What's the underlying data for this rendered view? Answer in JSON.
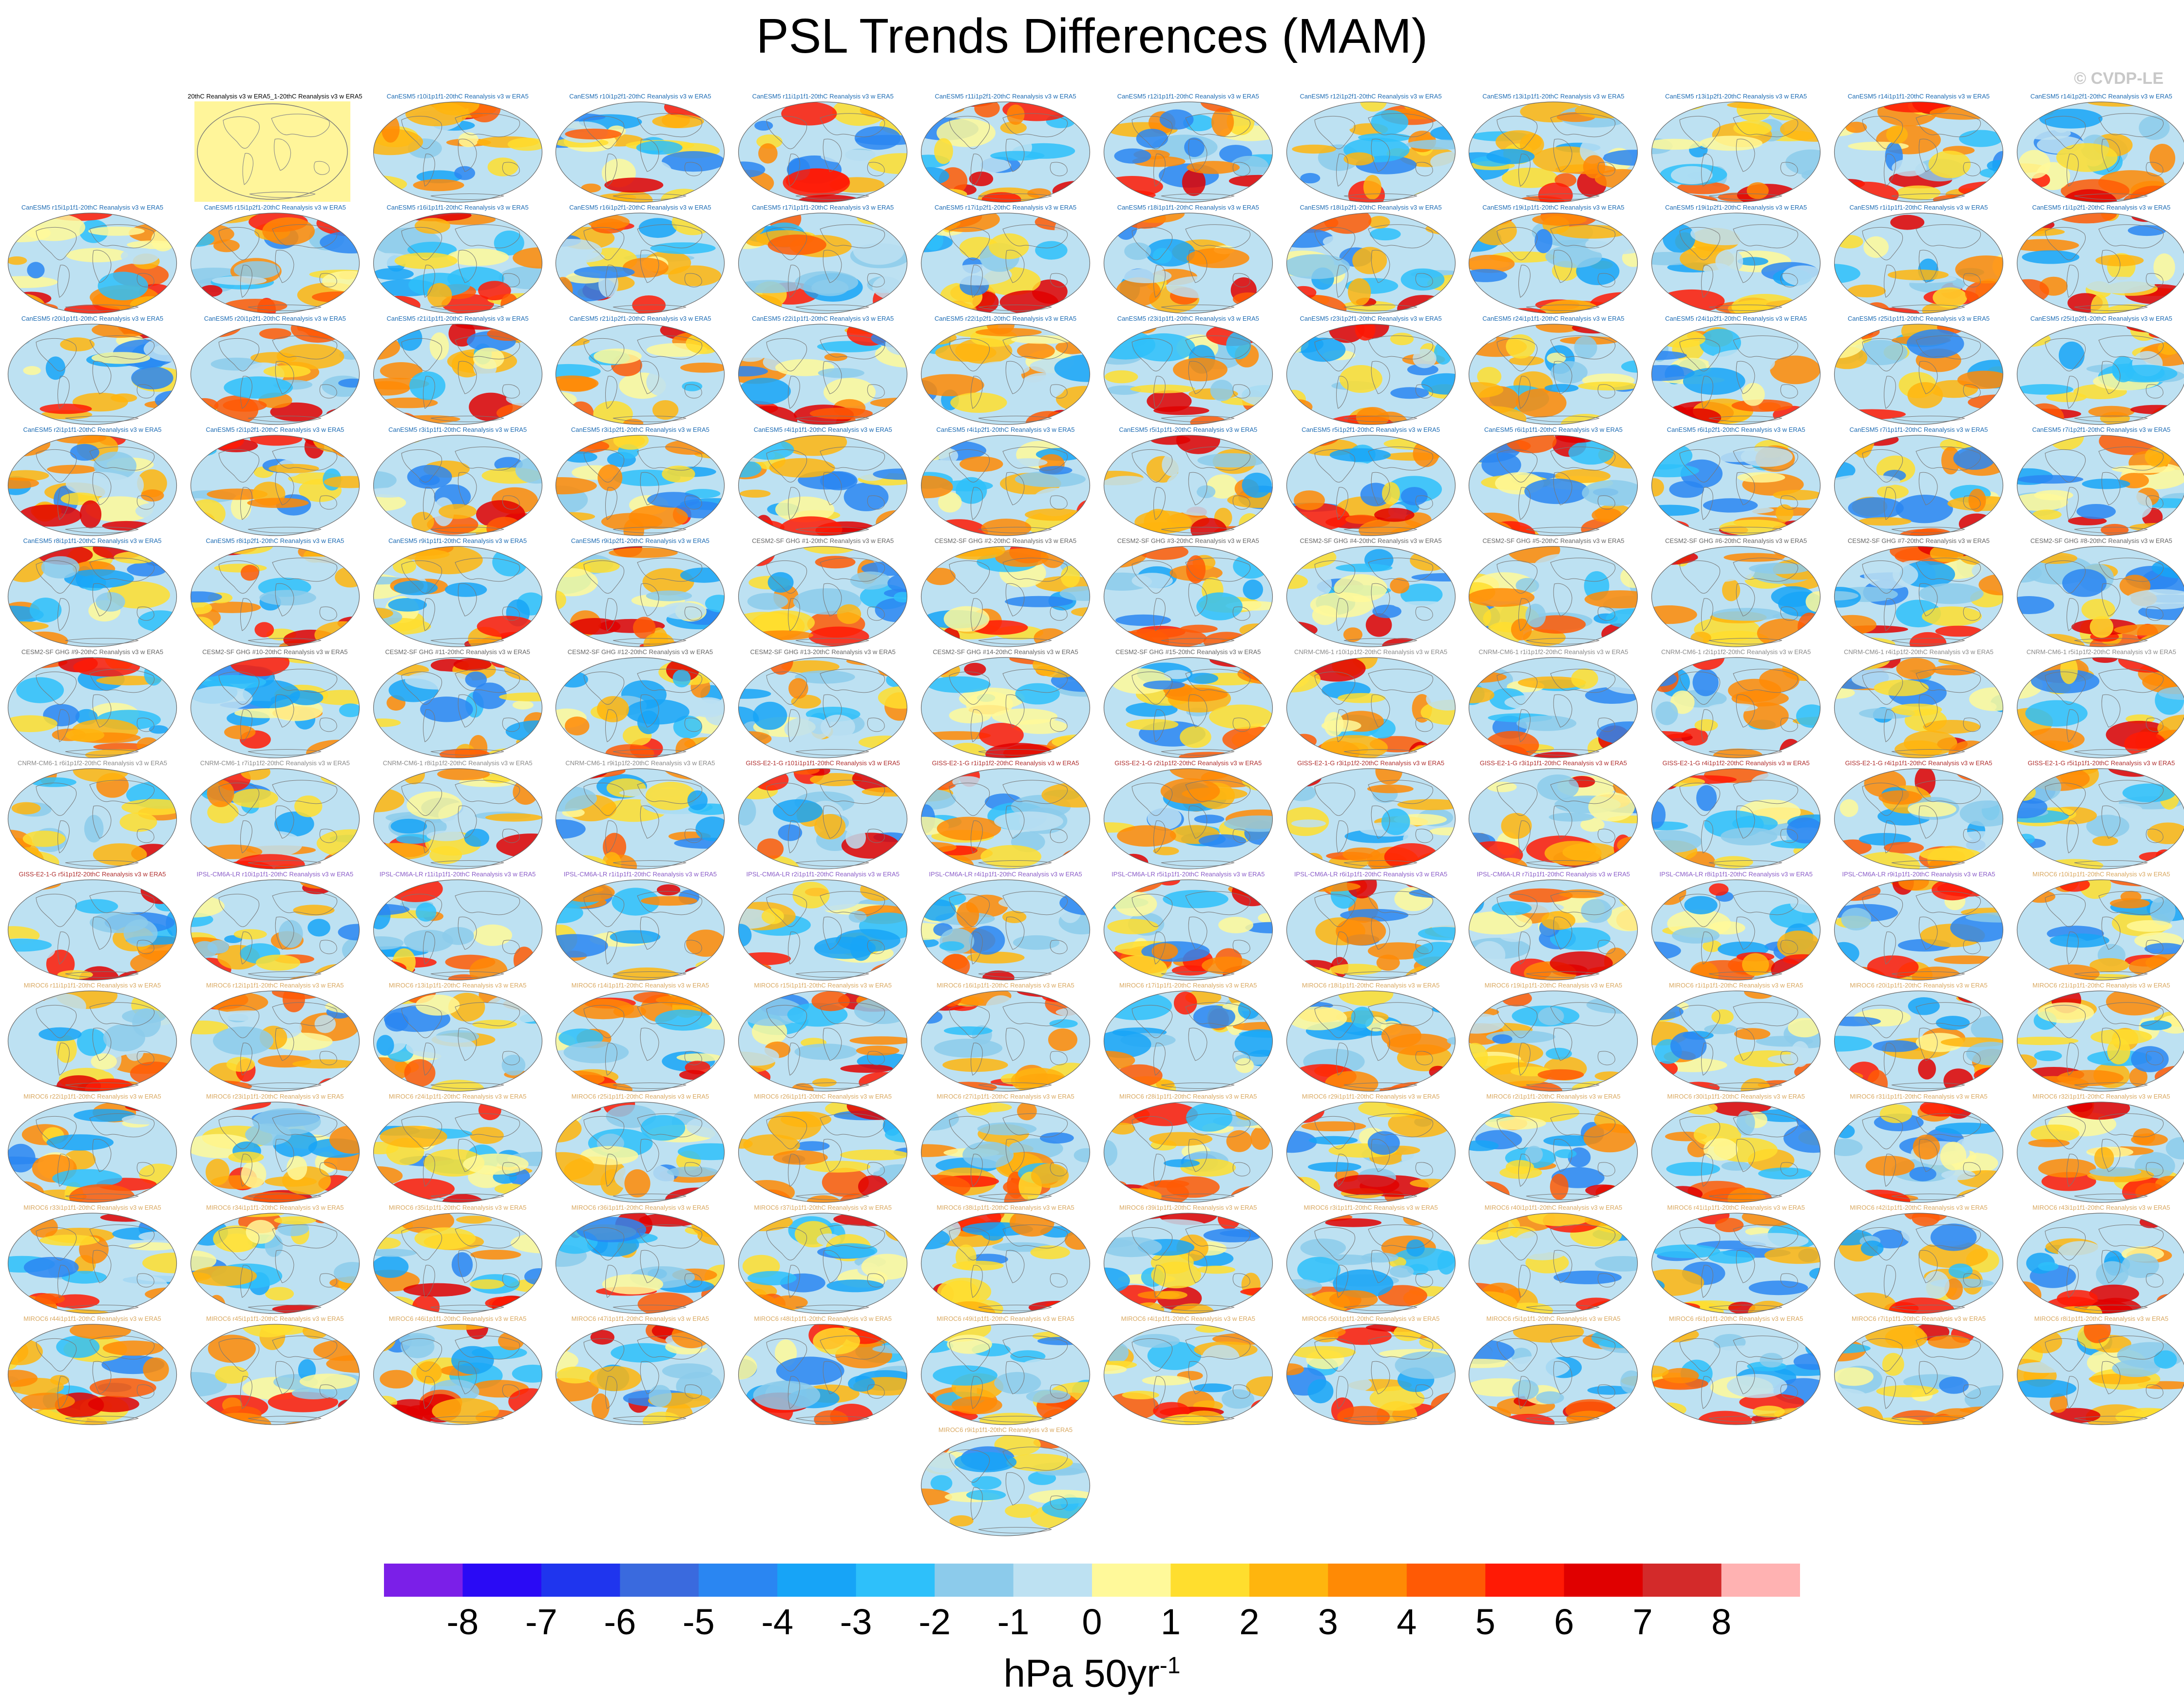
{
  "title": "PSL Trends Differences (MAM)",
  "copyright": "© CVDP-LE",
  "colorbar": {
    "unit_main": "hPa 50yr",
    "unit_exp": "-1",
    "tick_labels": [
      "-8",
      "-7",
      "-6",
      "-5",
      "-4",
      "-3",
      "-2",
      "-1",
      "0",
      "1",
      "2",
      "3",
      "4",
      "5",
      "6",
      "7",
      "8"
    ],
    "colors": [
      "#7b1fe8",
      "#2a0af5",
      "#1f35ee",
      "#3a6ade",
      "#2a86f2",
      "#17a4f7",
      "#2ec0fa",
      "#8ccbeb",
      "#bde1f2",
      "#fff99a",
      "#ffde2e",
      "#ffb50e",
      "#ff8a05",
      "#ff5a05",
      "#ff1a05",
      "#e00000",
      "#d32a2a",
      "#ffb2b2"
    ]
  },
  "chart_data": {
    "type": "heatmap",
    "title": "PSL Trends Differences (MAM)",
    "units": "hPa 50yr-1",
    "levels": [
      -8,
      -7,
      -6,
      -5,
      -4,
      -3,
      -2,
      -1,
      0,
      1,
      2,
      3,
      4,
      5,
      6,
      7,
      8
    ],
    "label_colors": {
      "CanESM5": "#1c6bb3",
      "CESM2": "#666666",
      "CNRM": "#8a8a8a",
      "GISS": "#b03030",
      "IPSL": "#8a5cc8",
      "MIROC6": "#d9a860",
      "ref": "#000000"
    },
    "panels": [
      {
        "label": "20thC Reanalysis v3 w ERA5_1-20thC Reanalysis v3 w ERA5",
        "group": "ref"
      },
      {
        "label": "CanESM5 r10i1p1f1-20thC Reanalysis v3 w ERA5",
        "group": "CanESM5"
      },
      {
        "label": "CanESM5 r10i1p2f1-20thC Reanalysis v3 w ERA5",
        "group": "CanESM5"
      },
      {
        "label": "CanESM5 r11i1p1f1-20thC Reanalysis v3 w ERA5",
        "group": "CanESM5"
      },
      {
        "label": "CanESM5 r11i1p2f1-20thC Reanalysis v3 w ERA5",
        "group": "CanESM5"
      },
      {
        "label": "CanESM5 r12i1p1f1-20thC Reanalysis v3 w ERA5",
        "group": "CanESM5"
      },
      {
        "label": "CanESM5 r12i1p2f1-20thC Reanalysis v3 w ERA5",
        "group": "CanESM5"
      },
      {
        "label": "CanESM5 r13i1p1f1-20thC Reanalysis v3 w ERA5",
        "group": "CanESM5"
      },
      {
        "label": "CanESM5 r13i1p2f1-20thC Reanalysis v3 w ERA5",
        "group": "CanESM5"
      },
      {
        "label": "CanESM5 r14i1p1f1-20thC Reanalysis v3 w ERA5",
        "group": "CanESM5"
      },
      {
        "label": "CanESM5 r14i1p2f1-20thC Reanalysis v3 w ERA5",
        "group": "CanESM5"
      },
      {
        "label": "CanESM5 r15i1p1f1-20thC Reanalysis v3 w ERA5",
        "group": "CanESM5"
      },
      {
        "label": "CanESM5 r15i1p2f1-20thC Reanalysis v3 w ERA5",
        "group": "CanESM5"
      },
      {
        "label": "CanESM5 r16i1p1f1-20thC Reanalysis v3 w ERA5",
        "group": "CanESM5"
      },
      {
        "label": "CanESM5 r16i1p2f1-20thC Reanalysis v3 w ERA5",
        "group": "CanESM5"
      },
      {
        "label": "CanESM5 r17i1p1f1-20thC Reanalysis v3 w ERA5",
        "group": "CanESM5"
      },
      {
        "label": "CanESM5 r17i1p2f1-20thC Reanalysis v3 w ERA5",
        "group": "CanESM5"
      },
      {
        "label": "CanESM5 r18i1p1f1-20thC Reanalysis v3 w ERA5",
        "group": "CanESM5"
      },
      {
        "label": "CanESM5 r18i1p2f1-20thC Reanalysis v3 w ERA5",
        "group": "CanESM5"
      },
      {
        "label": "CanESM5 r19i1p1f1-20thC Reanalysis v3 w ERA5",
        "group": "CanESM5"
      },
      {
        "label": "CanESM5 r19i1p2f1-20thC Reanalysis v3 w ERA5",
        "group": "CanESM5"
      },
      {
        "label": "CanESM5 r1i1p1f1-20thC Reanalysis v3 w ERA5",
        "group": "CanESM5"
      },
      {
        "label": "CanESM5 r1i1p2f1-20thC Reanalysis v3 w ERA5",
        "group": "CanESM5"
      },
      {
        "label": "CanESM5 r20i1p1f1-20thC Reanalysis v3 w ERA5",
        "group": "CanESM5"
      },
      {
        "label": "CanESM5 r20i1p2f1-20thC Reanalysis v3 w ERA5",
        "group": "CanESM5"
      },
      {
        "label": "CanESM5 r21i1p1f1-20thC Reanalysis v3 w ERA5",
        "group": "CanESM5"
      },
      {
        "label": "CanESM5 r21i1p2f1-20thC Reanalysis v3 w ERA5",
        "group": "CanESM5"
      },
      {
        "label": "CanESM5 r22i1p1f1-20thC Reanalysis v3 w ERA5",
        "group": "CanESM5"
      },
      {
        "label": "CanESM5 r22i1p2f1-20thC Reanalysis v3 w ERA5",
        "group": "CanESM5"
      },
      {
        "label": "CanESM5 r23i1p1f1-20thC Reanalysis v3 w ERA5",
        "group": "CanESM5"
      },
      {
        "label": "CanESM5 r23i1p2f1-20thC Reanalysis v3 w ERA5",
        "group": "CanESM5"
      },
      {
        "label": "CanESM5 r24i1p1f1-20thC Reanalysis v3 w ERA5",
        "group": "CanESM5"
      },
      {
        "label": "CanESM5 r24i1p2f1-20thC Reanalysis v3 w ERA5",
        "group": "CanESM5"
      },
      {
        "label": "CanESM5 r25i1p1f1-20thC Reanalysis v3 w ERA5",
        "group": "CanESM5"
      },
      {
        "label": "CanESM5 r25i1p2f1-20thC Reanalysis v3 w ERA5",
        "group": "CanESM5"
      },
      {
        "label": "CanESM5 r2i1p1f1-20thC Reanalysis v3 w ERA5",
        "group": "CanESM5"
      },
      {
        "label": "CanESM5 r2i1p2f1-20thC Reanalysis v3 w ERA5",
        "group": "CanESM5"
      },
      {
        "label": "CanESM5 r3i1p1f1-20thC Reanalysis v3 w ERA5",
        "group": "CanESM5"
      },
      {
        "label": "CanESM5 r3i1p2f1-20thC Reanalysis v3 w ERA5",
        "group": "CanESM5"
      },
      {
        "label": "CanESM5 r4i1p1f1-20thC Reanalysis v3 w ERA5",
        "group": "CanESM5"
      },
      {
        "label": "CanESM5 r4i1p2f1-20thC Reanalysis v3 w ERA5",
        "group": "CanESM5"
      },
      {
        "label": "CanESM5 r5i1p1f1-20thC Reanalysis v3 w ERA5",
        "group": "CanESM5"
      },
      {
        "label": "CanESM5 r5i1p2f1-20thC Reanalysis v3 w ERA5",
        "group": "CanESM5"
      },
      {
        "label": "CanESM5 r6i1p1f1-20thC Reanalysis v3 w ERA5",
        "group": "CanESM5"
      },
      {
        "label": "CanESM5 r6i1p2f1-20thC Reanalysis v3 w ERA5",
        "group": "CanESM5"
      },
      {
        "label": "CanESM5 r7i1p1f1-20thC Reanalysis v3 w ERA5",
        "group": "CanESM5"
      },
      {
        "label": "CanESM5 r7i1p2f1-20thC Reanalysis v3 w ERA5",
        "group": "CanESM5"
      },
      {
        "label": "CanESM5 r8i1p1f1-20thC Reanalysis v3 w ERA5",
        "group": "CanESM5"
      },
      {
        "label": "CanESM5 r8i1p2f1-20thC Reanalysis v3 w ERA5",
        "group": "CanESM5"
      },
      {
        "label": "CanESM5 r9i1p1f1-20thC Reanalysis v3 w ERA5",
        "group": "CanESM5"
      },
      {
        "label": "CanESM5 r9i1p2f1-20thC Reanalysis v3 w ERA5",
        "group": "CanESM5"
      },
      {
        "label": "CESM2-SF GHG #1-20thC Reanalysis v3 w ERA5",
        "group": "CESM2"
      },
      {
        "label": "CESM2-SF GHG #2-20thC Reanalysis v3 w ERA5",
        "group": "CESM2"
      },
      {
        "label": "CESM2-SF GHG #3-20thC Reanalysis v3 w ERA5",
        "group": "CESM2"
      },
      {
        "label": "CESM2-SF GHG #4-20thC Reanalysis v3 w ERA5",
        "group": "CESM2"
      },
      {
        "label": "CESM2-SF GHG #5-20thC Reanalysis v3 w ERA5",
        "group": "CESM2"
      },
      {
        "label": "CESM2-SF GHG #6-20thC Reanalysis v3 w ERA5",
        "group": "CESM2"
      },
      {
        "label": "CESM2-SF GHG #7-20thC Reanalysis v3 w ERA5",
        "group": "CESM2"
      },
      {
        "label": "CESM2-SF GHG #8-20thC Reanalysis v3 w ERA5",
        "group": "CESM2"
      },
      {
        "label": "CESM2-SF GHG #9-20thC Reanalysis v3 w ERA5",
        "group": "CESM2"
      },
      {
        "label": "CESM2-SF GHG #10-20thC Reanalysis v3 w ERA5",
        "group": "CESM2"
      },
      {
        "label": "CESM2-SF GHG #11-20thC Reanalysis v3 w ERA5",
        "group": "CESM2"
      },
      {
        "label": "CESM2-SF GHG #12-20thC Reanalysis v3 w ERA5",
        "group": "CESM2"
      },
      {
        "label": "CESM2-SF GHG #13-20thC Reanalysis v3 w ERA5",
        "group": "CESM2"
      },
      {
        "label": "CESM2-SF GHG #14-20thC Reanalysis v3 w ERA5",
        "group": "CESM2"
      },
      {
        "label": "CESM2-SF GHG #15-20thC Reanalysis v3 w ERA5",
        "group": "CESM2"
      },
      {
        "label": "CNRM-CM6-1 r10i1p1f2-20thC Reanalysis v3 w ERA5",
        "group": "CNRM"
      },
      {
        "label": "CNRM-CM6-1 r1i1p1f2-20thC Reanalysis v3 w ERA5",
        "group": "CNRM"
      },
      {
        "label": "CNRM-CM6-1 r2i1p1f2-20thC Reanalysis v3 w ERA5",
        "group": "CNRM"
      },
      {
        "label": "CNRM-CM6-1 r4i1p1f2-20thC Reanalysis v3 w ERA5",
        "group": "CNRM"
      },
      {
        "label": "CNRM-CM6-1 r5i1p1f2-20thC Reanalysis v3 w ERA5",
        "group": "CNRM"
      },
      {
        "label": "CNRM-CM6-1 r6i1p1f2-20thC Reanalysis v3 w ERA5",
        "group": "CNRM"
      },
      {
        "label": "CNRM-CM6-1 r7i1p1f2-20thC Reanalysis v3 w ERA5",
        "group": "CNRM"
      },
      {
        "label": "CNRM-CM6-1 r8i1p1f2-20thC Reanalysis v3 w ERA5",
        "group": "CNRM"
      },
      {
        "label": "CNRM-CM6-1 r9i1p1f2-20thC Reanalysis v3 w ERA5",
        "group": "CNRM"
      },
      {
        "label": "GISS-E2-1-G r101i1p1f1-20thC Reanalysis v3 w ERA5",
        "group": "GISS"
      },
      {
        "label": "GISS-E2-1-G r1i1p1f2-20thC Reanalysis v3 w ERA5",
        "group": "GISS"
      },
      {
        "label": "GISS-E2-1-G r2i1p1f2-20thC Reanalysis v3 w ERA5",
        "group": "GISS"
      },
      {
        "label": "GISS-E2-1-G r3i1p1f2-20thC Reanalysis v3 w ERA5",
        "group": "GISS"
      },
      {
        "label": "GISS-E2-1-G r3i1p1f1-20thC Reanalysis v3 w ERA5",
        "group": "GISS"
      },
      {
        "label": "GISS-E2-1-G r4i1p1f2-20thC Reanalysis v3 w ERA5",
        "group": "GISS"
      },
      {
        "label": "GISS-E2-1-G r4i1p1f1-20thC Reanalysis v3 w ERA5",
        "group": "GISS"
      },
      {
        "label": "GISS-E2-1-G r5i1p1f1-20thC Reanalysis v3 w ERA5",
        "group": "GISS"
      },
      {
        "label": "GISS-E2-1-G r5i1p1f2-20thC Reanalysis v3 w ERA5",
        "group": "GISS"
      },
      {
        "label": "IPSL-CM6A-LR r10i1p1f1-20thC Reanalysis v3 w ERA5",
        "group": "IPSL"
      },
      {
        "label": "IPSL-CM6A-LR r11i1p1f1-20thC Reanalysis v3 w ERA5",
        "group": "IPSL"
      },
      {
        "label": "IPSL-CM6A-LR r1i1p1f1-20thC Reanalysis v3 w ERA5",
        "group": "IPSL"
      },
      {
        "label": "IPSL-CM6A-LR r2i1p1f1-20thC Reanalysis v3 w ERA5",
        "group": "IPSL"
      },
      {
        "label": "IPSL-CM6A-LR r4i1p1f1-20thC Reanalysis v3 w ERA5",
        "group": "IPSL"
      },
      {
        "label": "IPSL-CM6A-LR r5i1p1f1-20thC Reanalysis v3 w ERA5",
        "group": "IPSL"
      },
      {
        "label": "IPSL-CM6A-LR r6i1p1f1-20thC Reanalysis v3 w ERA5",
        "group": "IPSL"
      },
      {
        "label": "IPSL-CM6A-LR r7i1p1f1-20thC Reanalysis v3 w ERA5",
        "group": "IPSL"
      },
      {
        "label": "IPSL-CM6A-LR r8i1p1f1-20thC Reanalysis v3 w ERA5",
        "group": "IPSL"
      },
      {
        "label": "IPSL-CM6A-LR r9i1p1f1-20thC Reanalysis v3 w ERA5",
        "group": "IPSL"
      },
      {
        "label": "MIROC6 r10i1p1f1-20thC Reanalysis v3 w ERA5",
        "group": "MIROC6"
      },
      {
        "label": "MIROC6 r11i1p1f1-20thC Reanalysis v3 w ERA5",
        "group": "MIROC6"
      },
      {
        "label": "MIROC6 r12i1p1f1-20thC Reanalysis v3 w ERA5",
        "group": "MIROC6"
      },
      {
        "label": "MIROC6 r13i1p1f1-20thC Reanalysis v3 w ERA5",
        "group": "MIROC6"
      },
      {
        "label": "MIROC6 r14i1p1f1-20thC Reanalysis v3 w ERA5",
        "group": "MIROC6"
      },
      {
        "label": "MIROC6 r15i1p1f1-20thC Reanalysis v3 w ERA5",
        "group": "MIROC6"
      },
      {
        "label": "MIROC6 r16i1p1f1-20thC Reanalysis v3 w ERA5",
        "group": "MIROC6"
      },
      {
        "label": "MIROC6 r17i1p1f1-20thC Reanalysis v3 w ERA5",
        "group": "MIROC6"
      },
      {
        "label": "MIROC6 r18i1p1f1-20thC Reanalysis v3 w ERA5",
        "group": "MIROC6"
      },
      {
        "label": "MIROC6 r19i1p1f1-20thC Reanalysis v3 w ERA5",
        "group": "MIROC6"
      },
      {
        "label": "MIROC6 r1i1p1f1-20thC Reanalysis v3 w ERA5",
        "group": "MIROC6"
      },
      {
        "label": "MIROC6 r20i1p1f1-20thC Reanalysis v3 w ERA5",
        "group": "MIROC6"
      },
      {
        "label": "MIROC6 r21i1p1f1-20thC Reanalysis v3 w ERA5",
        "group": "MIROC6"
      },
      {
        "label": "MIROC6 r22i1p1f1-20thC Reanalysis v3 w ERA5",
        "group": "MIROC6"
      },
      {
        "label": "MIROC6 r23i1p1f1-20thC Reanalysis v3 w ERA5",
        "group": "MIROC6"
      },
      {
        "label": "MIROC6 r24i1p1f1-20thC Reanalysis v3 w ERA5",
        "group": "MIROC6"
      },
      {
        "label": "MIROC6 r25i1p1f1-20thC Reanalysis v3 w ERA5",
        "group": "MIROC6"
      },
      {
        "label": "MIROC6 r26i1p1f1-20thC Reanalysis v3 w ERA5",
        "group": "MIROC6"
      },
      {
        "label": "MIROC6 r27i1p1f1-20thC Reanalysis v3 w ERA5",
        "group": "MIROC6"
      },
      {
        "label": "MIROC6 r28i1p1f1-20thC Reanalysis v3 w ERA5",
        "group": "MIROC6"
      },
      {
        "label": "MIROC6 r29i1p1f1-20thC Reanalysis v3 w ERA5",
        "group": "MIROC6"
      },
      {
        "label": "MIROC6 r2i1p1f1-20thC Reanalysis v3 w ERA5",
        "group": "MIROC6"
      },
      {
        "label": "MIROC6 r30i1p1f1-20thC Reanalysis v3 w ERA5",
        "group": "MIROC6"
      },
      {
        "label": "MIROC6 r31i1p1f1-20thC Reanalysis v3 w ERA5",
        "group": "MIROC6"
      },
      {
        "label": "MIROC6 r32i1p1f1-20thC Reanalysis v3 w ERA5",
        "group": "MIROC6"
      },
      {
        "label": "MIROC6 r33i1p1f1-20thC Reanalysis v3 w ERA5",
        "group": "MIROC6"
      },
      {
        "label": "MIROC6 r34i1p1f1-20thC Reanalysis v3 w ERA5",
        "group": "MIROC6"
      },
      {
        "label": "MIROC6 r35i1p1f1-20thC Reanalysis v3 w ERA5",
        "group": "MIROC6"
      },
      {
        "label": "MIROC6 r36i1p1f1-20thC Reanalysis v3 w ERA5",
        "group": "MIROC6"
      },
      {
        "label": "MIROC6 r37i1p1f1-20thC Reanalysis v3 w ERA5",
        "group": "MIROC6"
      },
      {
        "label": "MIROC6 r38i1p1f1-20thC Reanalysis v3 w ERA5",
        "group": "MIROC6"
      },
      {
        "label": "MIROC6 r39i1p1f1-20thC Reanalysis v3 w ERA5",
        "group": "MIROC6"
      },
      {
        "label": "MIROC6 r3i1p1f1-20thC Reanalysis v3 w ERA5",
        "group": "MIROC6"
      },
      {
        "label": "MIROC6 r40i1p1f1-20thC Reanalysis v3 w ERA5",
        "group": "MIROC6"
      },
      {
        "label": "MIROC6 r41i1p1f1-20thC Reanalysis v3 w ERA5",
        "group": "MIROC6"
      },
      {
        "label": "MIROC6 r42i1p1f1-20thC Reanalysis v3 w ERA5",
        "group": "MIROC6"
      },
      {
        "label": "MIROC6 r43i1p1f1-20thC Reanalysis v3 w ERA5",
        "group": "MIROC6"
      },
      {
        "label": "MIROC6 r44i1p1f1-20thC Reanalysis v3 w ERA5",
        "group": "MIROC6"
      },
      {
        "label": "MIROC6 r45i1p1f1-20thC Reanalysis v3 w ERA5",
        "group": "MIROC6"
      },
      {
        "label": "MIROC6 r46i1p1f1-20thC Reanalysis v3 w ERA5",
        "group": "MIROC6"
      },
      {
        "label": "MIROC6 r47i1p1f1-20thC Reanalysis v3 w ERA5",
        "group": "MIROC6"
      },
      {
        "label": "MIROC6 r48i1p1f1-20thC Reanalysis v3 w ERA5",
        "group": "MIROC6"
      },
      {
        "label": "MIROC6 r49i1p1f1-20thC Reanalysis v3 w ERA5",
        "group": "MIROC6"
      },
      {
        "label": "MIROC6 r4i1p1f1-20thC Reanalysis v3 w ERA5",
        "group": "MIROC6"
      },
      {
        "label": "MIROC6 r50i1p1f1-20thC Reanalysis v3 w ERA5",
        "group": "MIROC6"
      },
      {
        "label": "MIROC6 r5i1p1f1-20thC Reanalysis v3 w ERA5",
        "group": "MIROC6"
      },
      {
        "label": "MIROC6 r6i1p1f1-20thC Reanalysis v3 w ERA5",
        "group": "MIROC6"
      },
      {
        "label": "MIROC6 r7i1p1f1-20thC Reanalysis v3 w ERA5",
        "group": "MIROC6"
      },
      {
        "label": "MIROC6 r8i1p1f1-20thC Reanalysis v3 w ERA5",
        "group": "MIROC6"
      },
      {
        "label": "MIROC6 r9i1p1f1-20thC Reanalysis v3 w ERA5",
        "group": "MIROC6"
      }
    ]
  }
}
